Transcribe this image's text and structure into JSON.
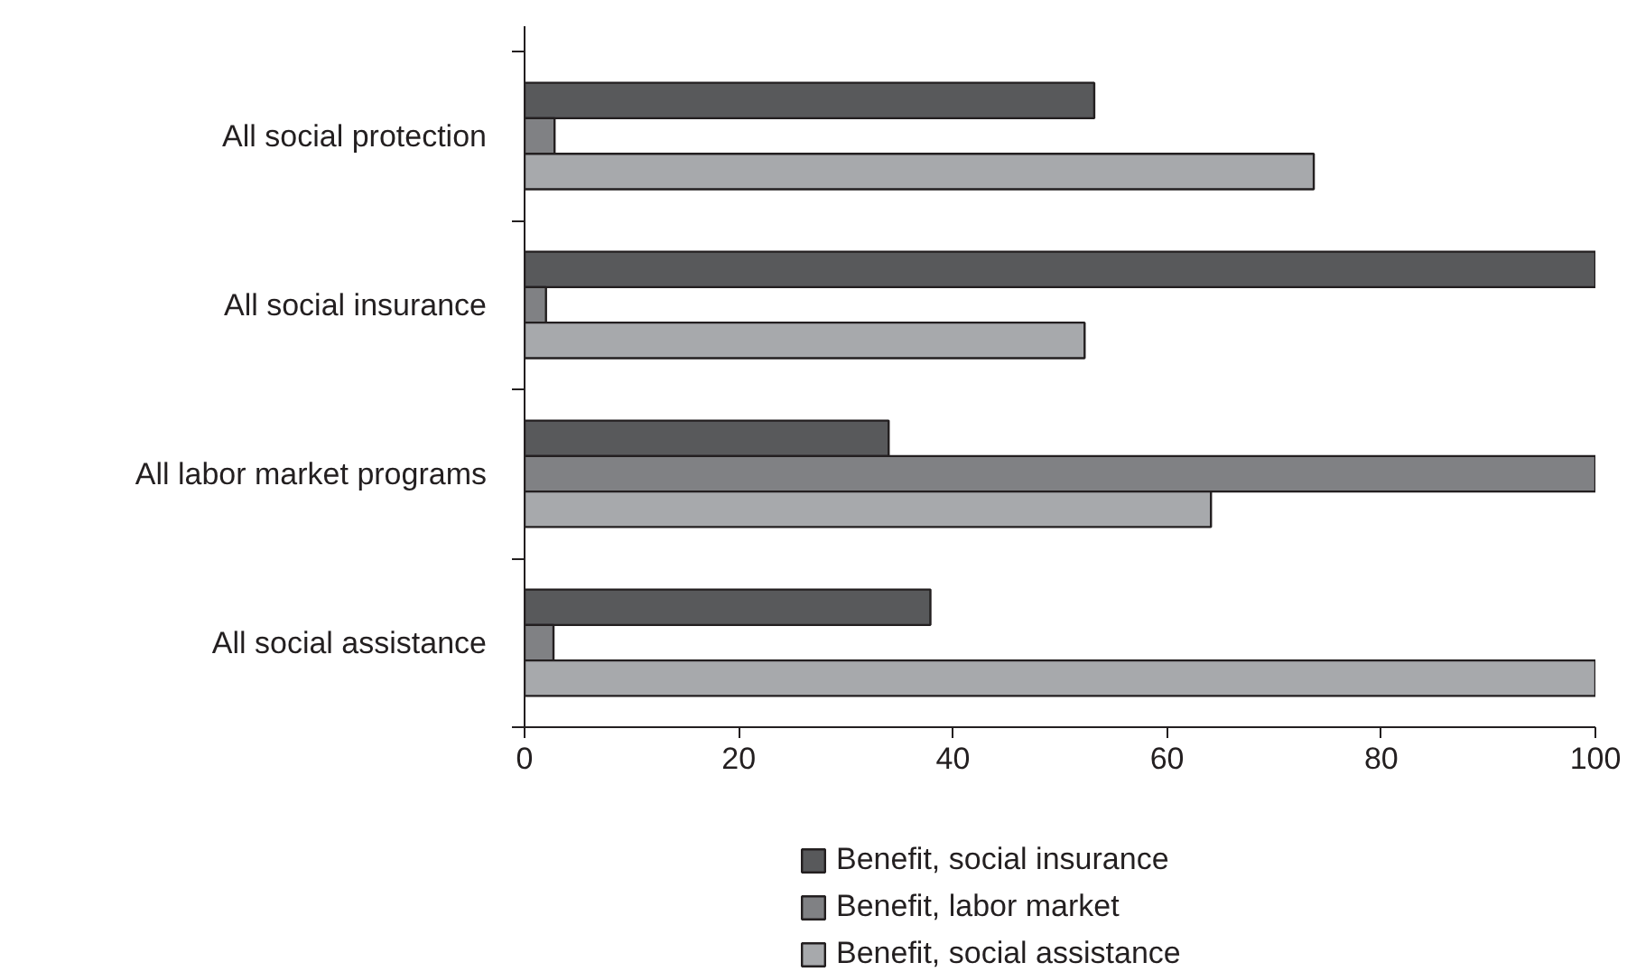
{
  "chart_data": {
    "type": "bar",
    "orientation": "horizontal",
    "categories": [
      "All social protection",
      "All social insurance",
      "All labor market programs",
      "All social assistance"
    ],
    "series": [
      {
        "name": "Benefit, social insurance",
        "color": "#58595b",
        "values": [
          53.2,
          100,
          34,
          37.9
        ]
      },
      {
        "name": "Benefit, labor market",
        "color": "#808184",
        "values": [
          2.8,
          2,
          100,
          2.7
        ]
      },
      {
        "name": "Benefit, social assistance",
        "color": "#a7a9ac",
        "values": [
          73.7,
          52.3,
          64.1,
          100
        ]
      }
    ],
    "xlim": [
      0,
      100
    ],
    "xticks": [
      0,
      20,
      40,
      60,
      80,
      100
    ],
    "grid": false,
    "legend": "bottom"
  }
}
